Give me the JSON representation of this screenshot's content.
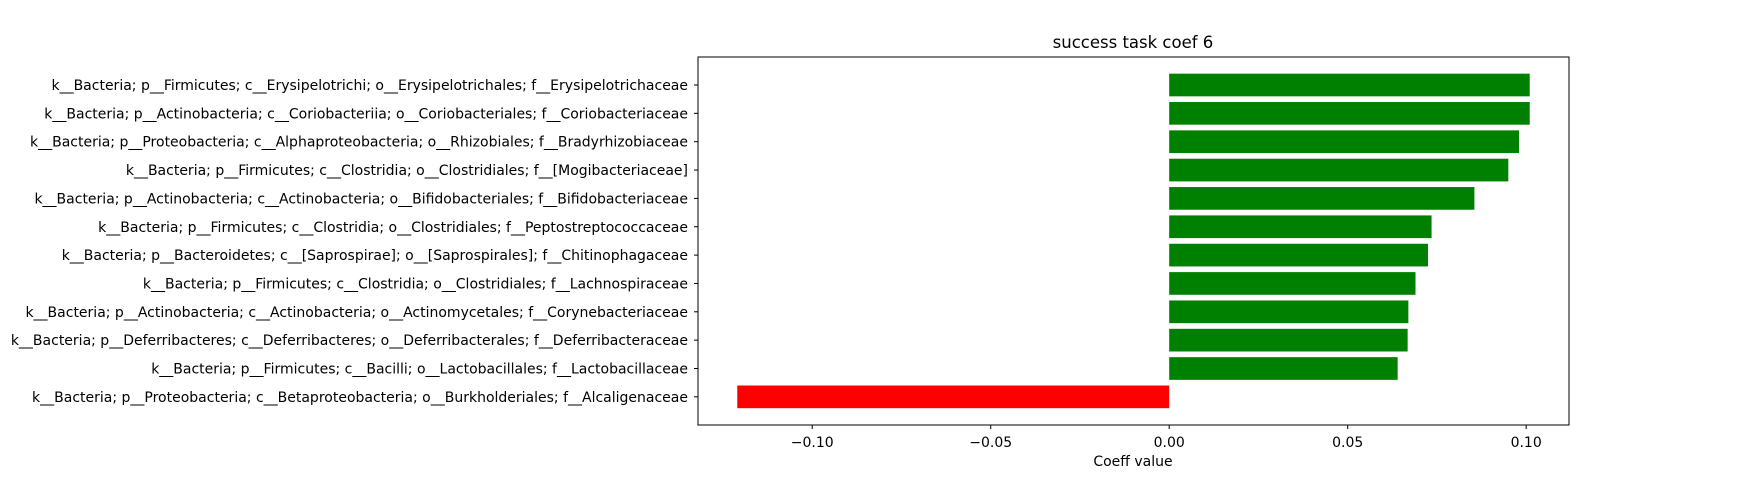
{
  "chart_data": {
    "type": "bar",
    "orientation": "horizontal",
    "title": "success task coef 6",
    "xlabel": "Coeff value",
    "ylabel": "",
    "xlim": [
      -0.132,
      0.112
    ],
    "xticks": [
      -0.1,
      -0.05,
      0.0,
      0.05,
      0.1
    ],
    "xtick_labels": [
      "−0.10",
      "−0.05",
      "0.00",
      "0.05",
      "0.10"
    ],
    "grid": false,
    "legend": "none",
    "categories": [
      "k__Bacteria; p__Firmicutes; c__Erysipelotrichi; o__Erysipelotrichales; f__Erysipelotrichaceae",
      "k__Bacteria; p__Actinobacteria; c__Coriobacteriia; o__Coriobacteriales; f__Coriobacteriaceae",
      "k__Bacteria; p__Proteobacteria; c__Alphaproteobacteria; o__Rhizobiales; f__Bradyrhizobiaceae",
      "k__Bacteria; p__Firmicutes; c__Clostridia; o__Clostridiales; f__[Mogibacteriaceae]",
      "k__Bacteria; p__Actinobacteria; c__Actinobacteria; o__Bifidobacteriales; f__Bifidobacteriaceae",
      "k__Bacteria; p__Firmicutes; c__Clostridia; o__Clostridiales; f__Peptostreptococcaceae",
      "k__Bacteria; p__Bacteroidetes; c__[Saprospirae]; o__[Saprospirales]; f__Chitinophagaceae",
      "k__Bacteria; p__Firmicutes; c__Clostridia; o__Clostridiales; f__Lachnospiraceae",
      "k__Bacteria; p__Actinobacteria; c__Actinobacteria; o__Actinomycetales; f__Corynebacteriaceae",
      "k__Bacteria; p__Deferribacteres; c__Deferribacteres; o__Deferribacterales; f__Deferribacteraceae",
      "k__Bacteria; p__Firmicutes; c__Bacilli; o__Lactobacillales; f__Lactobacillaceae",
      "k__Bacteria; p__Proteobacteria; c__Betaproteobacteria; o__Burkholderiales; f__Alcaligenaceae"
    ],
    "values": [
      0.101,
      0.101,
      0.098,
      0.095,
      0.0855,
      0.0735,
      0.0725,
      0.069,
      0.067,
      0.0668,
      0.064,
      -0.121
    ],
    "colors": {
      "positive": "#008000",
      "negative": "#ff0000"
    }
  }
}
